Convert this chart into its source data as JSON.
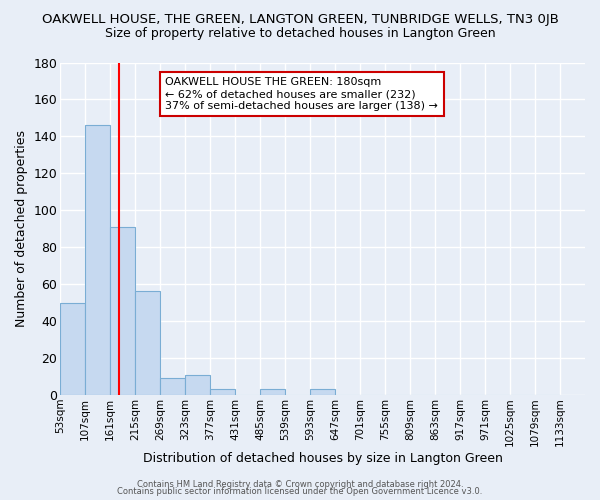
{
  "title": "OAKWELL HOUSE, THE GREEN, LANGTON GREEN, TUNBRIDGE WELLS, TN3 0JB",
  "subtitle": "Size of property relative to detached houses in Langton Green",
  "xlabel": "Distribution of detached houses by size in Langton Green",
  "ylabel": "Number of detached properties",
  "bar_values": [
    50,
    146,
    91,
    56,
    9,
    11,
    3,
    0,
    3,
    0,
    3,
    0,
    0,
    0,
    0,
    0,
    0,
    0,
    0,
    0
  ],
  "bin_labels": [
    "53sqm",
    "107sqm",
    "161sqm",
    "215sqm",
    "269sqm",
    "323sqm",
    "377sqm",
    "431sqm",
    "485sqm",
    "539sqm",
    "593sqm",
    "647sqm",
    "701sqm",
    "755sqm",
    "809sqm",
    "863sqm",
    "917sqm",
    "971sqm",
    "1025sqm",
    "1079sqm",
    "1133sqm"
  ],
  "bin_edges": [
    53,
    107,
    161,
    215,
    269,
    323,
    377,
    431,
    485,
    539,
    593,
    647,
    701,
    755,
    809,
    863,
    917,
    971,
    1025,
    1079,
    1133
  ],
  "bar_color": "#c6d9f0",
  "bar_edge_color": "#7aadd4",
  "vline_x": 180,
  "vline_color": "red",
  "ylim": [
    0,
    180
  ],
  "yticks": [
    0,
    20,
    40,
    60,
    80,
    100,
    120,
    140,
    160,
    180
  ],
  "annotation_title": "OAKWELL HOUSE THE GREEN: 180sqm",
  "annotation_line1": "← 62% of detached houses are smaller (232)",
  "annotation_line2": "37% of semi-detached houses are larger (138) →",
  "footnote1": "Contains HM Land Registry data © Crown copyright and database right 2024.",
  "footnote2": "Contains public sector information licensed under the Open Government Licence v3.0.",
  "background_color": "#e8eef7",
  "grid_color": "#ffffff"
}
